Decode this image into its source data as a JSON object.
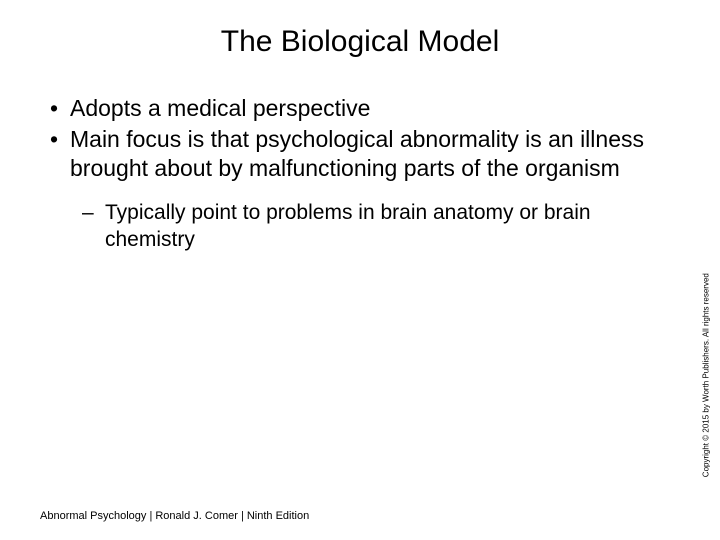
{
  "slide": {
    "title": "The Biological Model",
    "bullets": [
      "Adopts a medical perspective",
      "Main focus is that psychological abnormality is an illness brought about by malfunctioning parts of the organism"
    ],
    "sub_bullets": [
      "Typically point to problems in brain anatomy or brain chemistry"
    ],
    "footer": "Abnormal Psychology | Ronald J. Comer | Ninth Edition",
    "copyright": "Copyright © 2015 by Worth Publishers. All rights reserved"
  },
  "style": {
    "background_color": "#ffffff",
    "text_color": "#000000",
    "title_fontsize": 30,
    "bullet_fontsize": 23,
    "sub_bullet_fontsize": 21,
    "footer_fontsize": 11,
    "copyright_fontsize": 8,
    "font_family": "Arial"
  }
}
